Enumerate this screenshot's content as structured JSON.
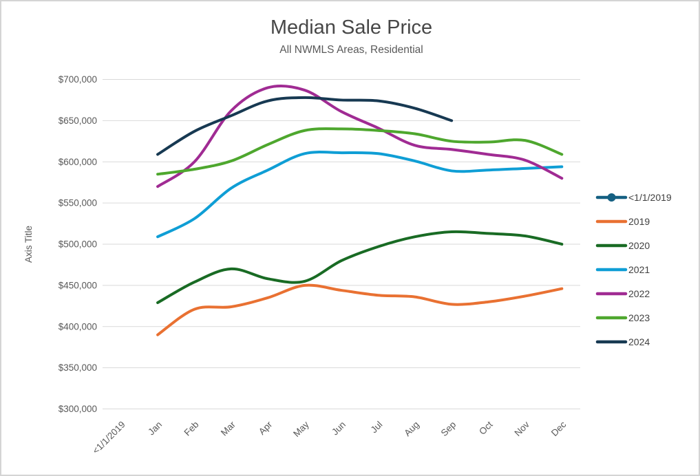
{
  "chart_data": {
    "type": "line",
    "title": "Median Sale Price",
    "subtitle": "All NWMLS Areas, Residential",
    "y_axis_title": "Axis Title",
    "line_style": "smoothed",
    "grid": "horizontal",
    "legend_position": "right",
    "categories": [
      "<1/1/2019",
      "Jan",
      "Feb",
      "Mar",
      "Apr",
      "May",
      "Jun",
      "Jul",
      "Aug",
      "Sep",
      "Oct",
      "Nov",
      "Dec"
    ],
    "ylim": [
      300000,
      700000
    ],
    "y_ticks": {
      "values": [
        300000,
        350000,
        400000,
        450000,
        500000,
        550000,
        600000,
        650000,
        700000
      ],
      "labels": [
        "$300,000",
        "$350,000",
        "$400,000",
        "$450,000",
        "$500,000",
        "$550,000",
        "$600,000",
        "$650,000",
        "$700,000"
      ]
    },
    "series": [
      {
        "name": "<1/1/2019",
        "color": "#156082",
        "marker": true,
        "start_category_index": 1,
        "values": []
      },
      {
        "name": "2019",
        "color": "#E97132",
        "marker": false,
        "start_category_index": 1,
        "values": [
          390000,
          421000,
          424000,
          435000,
          450000,
          444000,
          438000,
          436000,
          427000,
          430000,
          437000,
          446000
        ]
      },
      {
        "name": "2020",
        "color": "#196B24",
        "marker": false,
        "start_category_index": 1,
        "values": [
          429000,
          454000,
          470000,
          458000,
          455000,
          480000,
          497000,
          509000,
          515000,
          513000,
          510000,
          500000
        ]
      },
      {
        "name": "2021",
        "color": "#0F9ED5",
        "marker": false,
        "start_category_index": 1,
        "values": [
          509000,
          531000,
          568000,
          590000,
          610000,
          611000,
          610000,
          601000,
          589000,
          590000,
          592000,
          594000
        ]
      },
      {
        "name": "2022",
        "color": "#A02B93",
        "marker": false,
        "start_category_index": 1,
        "values": [
          570000,
          600000,
          662000,
          690000,
          687000,
          661000,
          641000,
          620000,
          615000,
          609000,
          602000,
          580000
        ]
      },
      {
        "name": "2023",
        "color": "#4EA72E",
        "marker": false,
        "start_category_index": 1,
        "values": [
          585000,
          591000,
          601000,
          621000,
          638000,
          640000,
          638000,
          634000,
          625000,
          624000,
          626000,
          609000
        ]
      },
      {
        "name": "2024",
        "color": "#173952",
        "marker": false,
        "start_category_index": 1,
        "values": [
          609000,
          637000,
          656000,
          674000,
          678000,
          675000,
          674000,
          665000,
          650000
        ]
      }
    ],
    "style": {
      "gridline_color": "#D9D9D9",
      "text_color": "#595959",
      "title_color": "#474747",
      "legend_text_color": "#404040",
      "background": "#FFFFFF",
      "border_color": "#D4D4D4"
    }
  }
}
